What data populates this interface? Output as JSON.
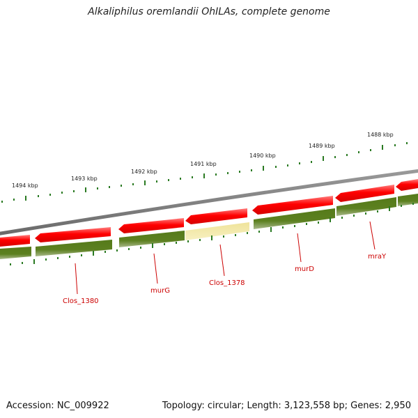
{
  "title": "Alkaliphilus oremlandii OhILAs, complete genome",
  "footer": {
    "accession": "Accession: NC_009922",
    "summary": "Topology: circular; Length: 3,123,558 bp; Genes: 2,950"
  },
  "ruler": {
    "labels": [
      "1494 kbp",
      "1493 kbp",
      "1492 kbp",
      "1491 kbp",
      "1490 kbp",
      "1489 kbp",
      "1488 kbp"
    ]
  },
  "genes": {
    "labels": [
      "Clos_1380",
      "murG",
      "Clos_1378",
      "murD",
      "mraY"
    ]
  },
  "colors": {
    "backbone": "#858585",
    "cds_forward": "#ff0000",
    "cds_reverse_track": "#5a7d1e",
    "highlight": "#f2e9a0",
    "ticks": "#2a7a22",
    "label": "#cc0000"
  }
}
